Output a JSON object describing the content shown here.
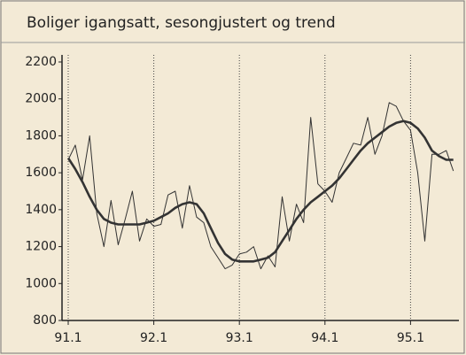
{
  "chart_data": {
    "type": "line",
    "title": "Boliger igangsatt, sesongjustert og trend",
    "categories": [
      "91.1",
      null,
      null,
      null,
      null,
      null,
      null,
      null,
      null,
      null,
      null,
      null,
      "92.1",
      null,
      null,
      null,
      null,
      null,
      null,
      null,
      null,
      null,
      null,
      null,
      "93.1",
      null,
      null,
      null,
      null,
      null,
      null,
      null,
      null,
      null,
      null,
      null,
      "94.1",
      null,
      null,
      null,
      null,
      null,
      null,
      null,
      null,
      null,
      null,
      null,
      "95.1",
      null,
      null,
      null,
      null,
      null,
      null
    ],
    "series": [
      {
        "color": "#333333",
        "width": 1,
        "values": [
          1670,
          1750,
          1560,
          1800,
          1380,
          1200,
          1450,
          1210,
          1350,
          1500,
          1230,
          1350,
          1310,
          1320,
          1480,
          1500,
          1300,
          1530,
          1360,
          1330,
          1200,
          1140,
          1080,
          1100,
          1160,
          1170,
          1200,
          1080,
          1150,
          1090,
          1470,
          1230,
          1430,
          1330,
          1900,
          1540,
          1500,
          1440,
          1600,
          1680,
          1760,
          1750,
          1900,
          1700,
          1800,
          1980,
          1960,
          1880,
          1830,
          1600,
          1230,
          1700,
          1700,
          1720,
          1610
        ]
      },
      {
        "color": "#333333",
        "width": 2.6,
        "values": [
          1680,
          1620,
          1550,
          1470,
          1400,
          1350,
          1330,
          1320,
          1320,
          1320,
          1320,
          1330,
          1340,
          1360,
          1380,
          1410,
          1430,
          1440,
          1430,
          1380,
          1300,
          1220,
          1160,
          1130,
          1120,
          1120,
          1120,
          1130,
          1140,
          1170,
          1230,
          1290,
          1350,
          1400,
          1440,
          1470,
          1500,
          1530,
          1570,
          1620,
          1670,
          1720,
          1760,
          1790,
          1820,
          1850,
          1870,
          1880,
          1870,
          1840,
          1790,
          1720,
          1690,
          1670,
          1670
        ]
      }
    ],
    "ylim": [
      800,
      2200
    ],
    "yticks": [
      800,
      1000,
      1200,
      1400,
      1600,
      1800,
      2000,
      2200
    ],
    "grid": true
  }
}
